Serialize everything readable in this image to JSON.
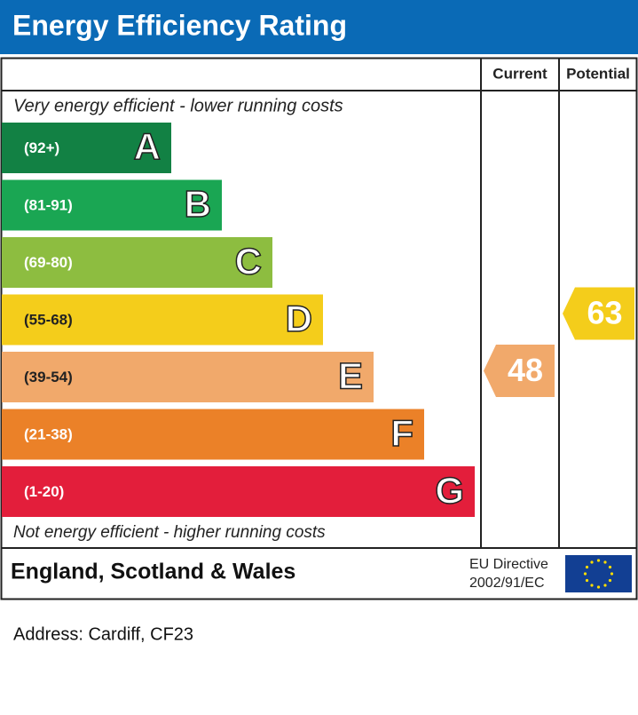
{
  "header": {
    "title": "Energy Efficiency Rating"
  },
  "columns": [
    "Current",
    "Potential"
  ],
  "top_note": "Very energy efficient - lower running costs",
  "bottom_note": "Not energy efficient - higher running costs",
  "bands": [
    {
      "range": "(92+)",
      "letter": "A",
      "color": "#128144"
    },
    {
      "range": "(81-91)",
      "letter": "B",
      "color": "#1aa653"
    },
    {
      "range": "(69-80)",
      "letter": "C",
      "color": "#8dbd40"
    },
    {
      "range": "(55-68)",
      "letter": "D",
      "color": "#f4cd1b"
    },
    {
      "range": "(39-54)",
      "letter": "E",
      "color": "#f1a96b"
    },
    {
      "range": "(21-38)",
      "letter": "F",
      "color": "#eb8128"
    },
    {
      "range": "(1-20)",
      "letter": "G",
      "color": "#e31e3b"
    }
  ],
  "ratings": {
    "current": 48,
    "potential": 63
  },
  "footer": {
    "region": "England, Scotland & Wales",
    "directive": [
      "EU Directive",
      "2002/91/EC"
    ]
  },
  "address": "Address: Cardiff, CF23"
}
